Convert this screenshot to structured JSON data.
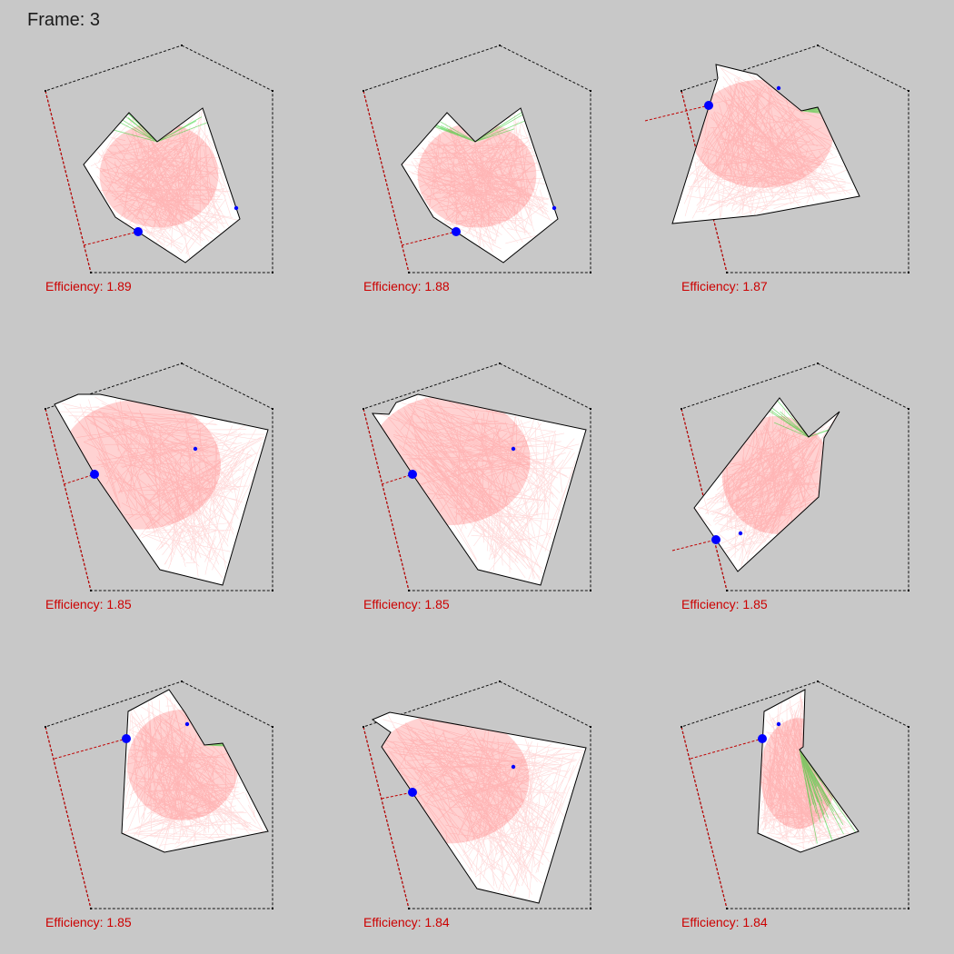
{
  "frame_label": "Frame: 3",
  "colors": {
    "background": "#c8c8c8",
    "dashed_outline": "#111111",
    "dashed_side": "#c00000",
    "polygon_fill": "#ffffff",
    "polygon_stroke": "#000000",
    "red_rays": "#ff3030",
    "green_rays": "#22cc22",
    "point": "#0000ff",
    "efficiency_text": "#cc0000"
  },
  "panels": [
    {
      "efficiency": "Efficiency: 1.89"
    },
    {
      "efficiency": "Efficiency: 1.88"
    },
    {
      "efficiency": "Efficiency: 1.87"
    },
    {
      "efficiency": "Efficiency: 1.85"
    },
    {
      "efficiency": "Efficiency: 1.85"
    },
    {
      "efficiency": "Efficiency: 1.85"
    },
    {
      "efficiency": "Efficiency: 1.85"
    },
    {
      "efficiency": "Efficiency: 1.84"
    },
    {
      "efficiency": "Efficiency: 1.84"
    }
  ]
}
